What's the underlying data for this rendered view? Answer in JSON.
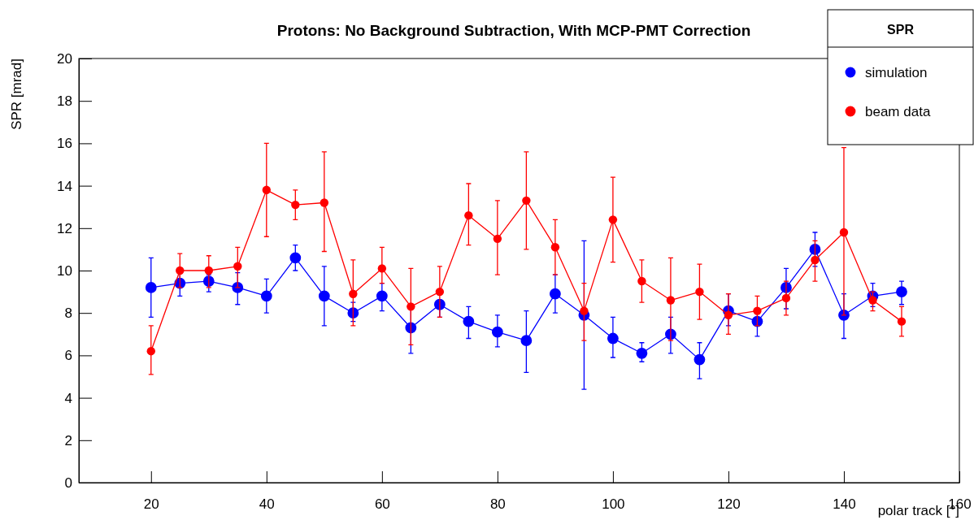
{
  "chart_data": {
    "type": "line",
    "title": "Protons: No Background Subtraction, With MCP-PMT Correction",
    "xlabel": "polar track [°]",
    "ylabel": "SPR [mrad]",
    "legend_title": "SPR",
    "x": [
      20,
      25,
      30,
      35,
      40,
      45,
      50,
      55,
      60,
      65,
      70,
      75,
      80,
      85,
      90,
      95,
      100,
      105,
      110,
      115,
      120,
      125,
      130,
      135,
      140,
      145,
      150
    ],
    "series": [
      {
        "name": "simulation",
        "color": "#0000ff",
        "values": [
          9.2,
          9.4,
          9.5,
          9.2,
          8.8,
          10.6,
          8.8,
          8.0,
          8.8,
          7.3,
          8.4,
          7.6,
          7.1,
          6.7,
          8.9,
          7.9,
          6.8,
          6.1,
          7.0,
          5.8,
          8.1,
          7.6,
          9.2,
          11.0,
          7.9,
          8.8,
          9.0
        ],
        "errors": [
          [
            7.8,
            10.6
          ],
          [
            8.8,
            9.9
          ],
          [
            9.0,
            9.8
          ],
          [
            8.4,
            9.9
          ],
          [
            8.0,
            9.6
          ],
          [
            10.0,
            11.2
          ],
          [
            7.4,
            10.2
          ],
          [
            7.6,
            8.5
          ],
          [
            8.1,
            9.4
          ],
          [
            6.1,
            8.4
          ],
          [
            7.8,
            8.6
          ],
          [
            6.8,
            8.3
          ],
          [
            6.4,
            7.9
          ],
          [
            5.2,
            8.1
          ],
          [
            8.0,
            9.8
          ],
          [
            4.4,
            11.4
          ],
          [
            5.9,
            7.8
          ],
          [
            5.7,
            6.6
          ],
          [
            6.1,
            7.8
          ],
          [
            4.9,
            6.6
          ],
          [
            7.4,
            8.9
          ],
          [
            6.9,
            8.2
          ],
          [
            8.2,
            10.1
          ],
          [
            10.2,
            11.8
          ],
          [
            6.8,
            8.9
          ],
          [
            8.3,
            9.4
          ],
          [
            8.4,
            9.5
          ]
        ]
      },
      {
        "name": "beam data",
        "color": "#ff0000",
        "values": [
          6.2,
          10.0,
          10.0,
          10.2,
          13.8,
          13.1,
          13.2,
          8.9,
          10.1,
          8.3,
          9.0,
          12.6,
          11.5,
          13.3,
          11.1,
          8.1,
          12.4,
          9.5,
          8.6,
          9.0,
          7.9,
          8.1,
          8.7,
          10.5,
          11.8,
          8.6,
          7.6
        ],
        "errors": [
          [
            5.1,
            7.4
          ],
          [
            9.2,
            10.8
          ],
          [
            9.2,
            10.7
          ],
          [
            9.2,
            11.1
          ],
          [
            11.6,
            16.0
          ],
          [
            12.4,
            13.8
          ],
          [
            10.9,
            15.6
          ],
          [
            7.4,
            10.5
          ],
          [
            9.4,
            11.1
          ],
          [
            6.5,
            10.1
          ],
          [
            7.8,
            10.2
          ],
          [
            11.2,
            14.1
          ],
          [
            9.8,
            13.3
          ],
          [
            11.0,
            15.6
          ],
          [
            9.8,
            12.4
          ],
          [
            6.7,
            9.4
          ],
          [
            10.4,
            14.4
          ],
          [
            8.5,
            10.5
          ],
          [
            6.7,
            10.6
          ],
          [
            7.7,
            10.3
          ],
          [
            7.0,
            8.9
          ],
          [
            7.4,
            8.8
          ],
          [
            7.9,
            9.5
          ],
          [
            9.5,
            11.4
          ],
          [
            7.9,
            15.8
          ],
          [
            8.1,
            9.0
          ],
          [
            6.9,
            8.3
          ]
        ]
      }
    ],
    "xlim": [
      7.5,
      160
    ],
    "xticks": [
      20,
      40,
      60,
      80,
      100,
      120,
      140,
      160
    ],
    "ylim": [
      0,
      20
    ],
    "yticks": [
      0,
      2,
      4,
      6,
      8,
      10,
      12,
      14,
      16,
      18,
      20
    ],
    "grid": false,
    "legend": "top right",
    "marker": "circle",
    "line_style": "solid"
  }
}
